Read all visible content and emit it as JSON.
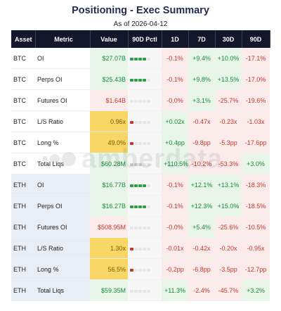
{
  "header": {
    "title": "Positioning - Exec Summary",
    "subtitle": "As of 2026-04-12"
  },
  "watermark": {
    "text": "amberdata"
  },
  "colors": {
    "header_bg": "#12172b",
    "pos_bg": "#e7f6e9",
    "pos_text": "#1b8a3a",
    "neg_bg": "#fcebeb",
    "neg_text": "#c0392b",
    "neutral_bg": "#f6f6f6",
    "highlight_bg": "#f8d766",
    "highlight_text": "#7a5a00",
    "bar_green": "#2e9e4a",
    "bar_red": "#c0392b",
    "bar_gray": "#c9c9c9",
    "bar_empty": "#e6e6e6"
  },
  "table": {
    "columns": [
      "Asset",
      "Metric",
      "Value",
      "90D Pctl",
      "1D",
      "7D",
      "30D",
      "90D"
    ],
    "rows": [
      {
        "asset": "BTC",
        "metric": "OI",
        "value": "$27.07B",
        "value_tone": "pos",
        "pctl": 4,
        "pctl_tone": "green",
        "d1": "-0.1%",
        "d1_tone": "neg",
        "d7": "+9.4%",
        "d7_tone": "pos",
        "d30": "+10.0%",
        "d30_tone": "pos",
        "d90": "-17.1%",
        "d90_tone": "neg"
      },
      {
        "asset": "BTC",
        "metric": "Perps OI",
        "value": "$25.43B",
        "value_tone": "pos",
        "pctl": 4,
        "pctl_tone": "green",
        "d1": "-0.1%",
        "d1_tone": "neg",
        "d7": "+9.8%",
        "d7_tone": "pos",
        "d30": "+13.5%",
        "d30_tone": "pos",
        "d90": "-17.0%",
        "d90_tone": "neg"
      },
      {
        "asset": "BTC",
        "metric": "Futures OI",
        "value": "$1.64B",
        "value_tone": "neg",
        "pctl": 0,
        "pctl_tone": "none",
        "d1": "-0.0%",
        "d1_tone": "neg",
        "d7": "+3.1%",
        "d7_tone": "pos",
        "d30": "-25.7%",
        "d30_tone": "neg",
        "d90": "-19.6%",
        "d90_tone": "neg"
      },
      {
        "asset": "BTC",
        "metric": "L/S Ratio",
        "value": "0.96x",
        "value_tone": "highlight",
        "pctl": 1,
        "pctl_tone": "red",
        "d1": "+0.02x",
        "d1_tone": "pos",
        "d7": "-0.47x",
        "d7_tone": "neg",
        "d30": "-0.23x",
        "d30_tone": "neg",
        "d90": "-1.03x",
        "d90_tone": "neg"
      },
      {
        "asset": "BTC",
        "metric": "Long %",
        "value": "49.0%",
        "value_tone": "highlight",
        "pctl": 1,
        "pctl_tone": "red",
        "d1": "+0.4pp",
        "d1_tone": "pos",
        "d7": "-9.8pp",
        "d7_tone": "neg",
        "d30": "-5.3pp",
        "d30_tone": "neg",
        "d90": "-17.6pp",
        "d90_tone": "neg"
      },
      {
        "asset": "BTC",
        "metric": "Total Liqs",
        "value": "$60.28M",
        "value_tone": "pos",
        "pctl": 3,
        "pctl_tone": "gray",
        "d1": "+110.5%",
        "d1_tone": "pos",
        "d7": "-10.2%",
        "d7_tone": "neg",
        "d30": "-53.3%",
        "d30_tone": "neg",
        "d90": "+3.0%",
        "d90_tone": "pos"
      },
      {
        "asset": "ETH",
        "metric": "OI",
        "value": "$16.77B",
        "value_tone": "pos",
        "pctl": 4,
        "pctl_tone": "green",
        "d1": "-0.1%",
        "d1_tone": "neg",
        "d7": "+12.1%",
        "d7_tone": "pos",
        "d30": "+13.1%",
        "d30_tone": "pos",
        "d90": "-18.3%",
        "d90_tone": "neg"
      },
      {
        "asset": "ETH",
        "metric": "Perps OI",
        "value": "$16.27B",
        "value_tone": "pos",
        "pctl": 4,
        "pctl_tone": "green",
        "d1": "-0.1%",
        "d1_tone": "neg",
        "d7": "+12.3%",
        "d7_tone": "pos",
        "d30": "+15.0%",
        "d30_tone": "pos",
        "d90": "-18.5%",
        "d90_tone": "neg"
      },
      {
        "asset": "ETH",
        "metric": "Futures OI",
        "value": "$508.95M",
        "value_tone": "neg",
        "pctl": 0,
        "pctl_tone": "none",
        "d1": "-0.0%",
        "d1_tone": "neg",
        "d7": "+5.4%",
        "d7_tone": "pos",
        "d30": "-25.6%",
        "d30_tone": "neg",
        "d90": "-10.5%",
        "d90_tone": "neg"
      },
      {
        "asset": "ETH",
        "metric": "L/S Ratio",
        "value": "1.30x",
        "value_tone": "highlight",
        "pctl": 1,
        "pctl_tone": "red",
        "d1": "-0.01x",
        "d1_tone": "neg",
        "d7": "-0.42x",
        "d7_tone": "neg",
        "d30": "-0.20x",
        "d30_tone": "neg",
        "d90": "-0.95x",
        "d90_tone": "neg"
      },
      {
        "asset": "ETH",
        "metric": "Long %",
        "value": "56.5%",
        "value_tone": "highlight",
        "pctl": 1,
        "pctl_tone": "red",
        "d1": "-0.2pp",
        "d1_tone": "neg",
        "d7": "-6.8pp",
        "d7_tone": "neg",
        "d30": "-3.5pp",
        "d30_tone": "neg",
        "d90": "-12.7pp",
        "d90_tone": "neg"
      },
      {
        "asset": "ETH",
        "metric": "Total Liqs",
        "value": "$59.35M",
        "value_tone": "pos",
        "pctl": 0,
        "pctl_tone": "none",
        "d1": "+11.3%",
        "d1_tone": "pos",
        "d7": "-2.4%",
        "d7_tone": "neg",
        "d30": "-45.7%",
        "d30_tone": "neg",
        "d90": "+3.2%",
        "d90_tone": "pos"
      }
    ]
  }
}
